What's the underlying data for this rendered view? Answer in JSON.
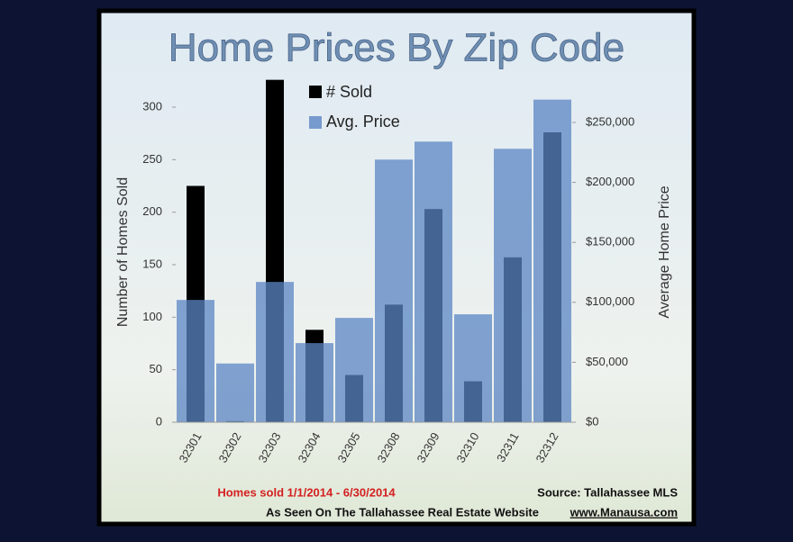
{
  "chart_data": {
    "type": "bar",
    "title": "Home Prices By Zip Code",
    "categories": [
      "32301",
      "32302",
      "32303",
      "32304",
      "32305",
      "32308",
      "32309",
      "32310",
      "32311",
      "32312"
    ],
    "series": [
      {
        "name": "# Sold",
        "color": "#000000",
        "values": [
          225,
          1,
          326,
          88,
          45,
          112,
          203,
          39,
          157,
          276
        ]
      },
      {
        "name": "Avg. Price",
        "color": "#5b85c4",
        "axis": "y2",
        "values": [
          102000,
          49000,
          117000,
          66000,
          87000,
          219000,
          234000,
          90000,
          228000,
          269000
        ]
      }
    ],
    "ylabel": "Number of Homes Sold",
    "y2label": "Average Home Price",
    "ylim": [
      0,
      330
    ],
    "yticks": [
      0,
      50,
      100,
      150,
      200,
      250,
      300
    ],
    "y2lim": [
      0,
      289000
    ],
    "y2ticks": [
      {
        "value": 0,
        "label": "$0"
      },
      {
        "value": 50000,
        "label": "$50,000"
      },
      {
        "value": 100000,
        "label": "$100,000"
      },
      {
        "value": 150000,
        "label": "$150,000"
      },
      {
        "value": 200000,
        "label": "$200,000"
      },
      {
        "value": 250000,
        "label": "$250,000"
      }
    ],
    "note": "Homes sold 1/1/2014 - 6/30/2014",
    "source": "Source: Tallahassee MLS",
    "footer": "As Seen On The Tallahassee Real Estate Website",
    "website": "www.Manausa.com"
  }
}
